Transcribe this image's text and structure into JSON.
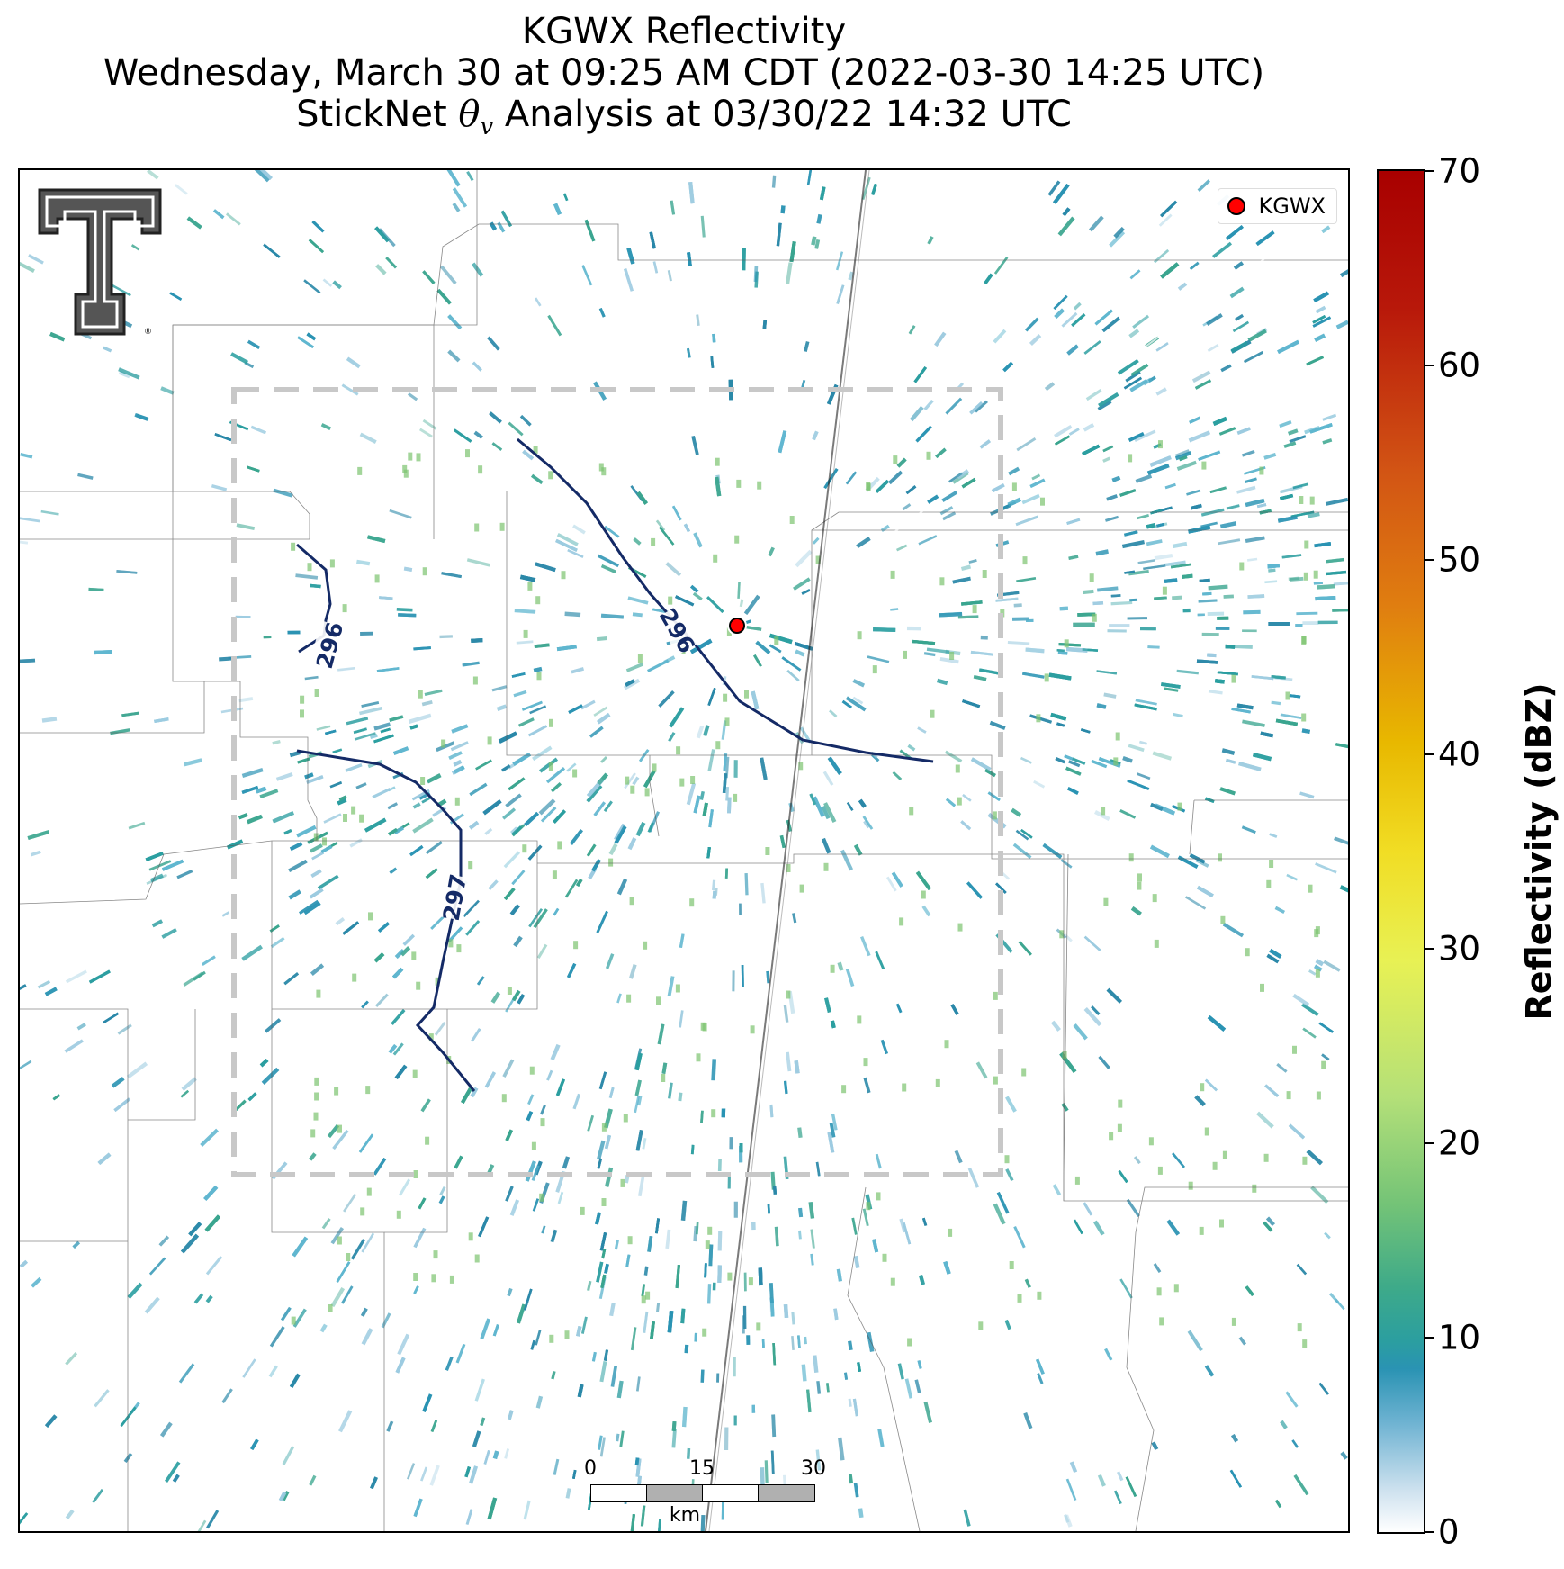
{
  "title": {
    "line1": "KGWX Reflectivity",
    "line2": "Wednesday, March 30 at 09:25 AM CDT (2022-03-30 14:25 UTC)",
    "line3_prefix": "StickNet ",
    "line3_theta": "θ",
    "line3_sub": "v",
    "line3_suffix": " Analysis at 03/30/22 14:32 UTC"
  },
  "legend": {
    "label": "KGWX"
  },
  "radar": {
    "name": "KGWX",
    "marker_color": "#ff0000"
  },
  "contours": [
    {
      "label": "296",
      "color": "#142a66"
    },
    {
      "label": "296",
      "color": "#142a66"
    },
    {
      "label": "297",
      "color": "#142a66"
    }
  ],
  "scalebar": {
    "ticks": [
      "0",
      "15",
      "30"
    ],
    "unit": "km",
    "colors": [
      "#ffffff",
      "#b0b0b0",
      "#ffffff",
      "#b0b0b0"
    ]
  },
  "colorbar": {
    "title": "Reflectivity (dBZ)",
    "min": 0,
    "max": 70,
    "ticks": [
      "0",
      "10",
      "20",
      "30",
      "40",
      "50",
      "60",
      "70"
    ]
  },
  "colors": {
    "echo_primary": "#2a93b3",
    "echo_secondary": "#3aa58f",
    "contour": "#142a66",
    "domain_box": "#c8c8c8"
  },
  "logo": {
    "name": "texas-tech-double-t-logo",
    "letters": "TT"
  }
}
